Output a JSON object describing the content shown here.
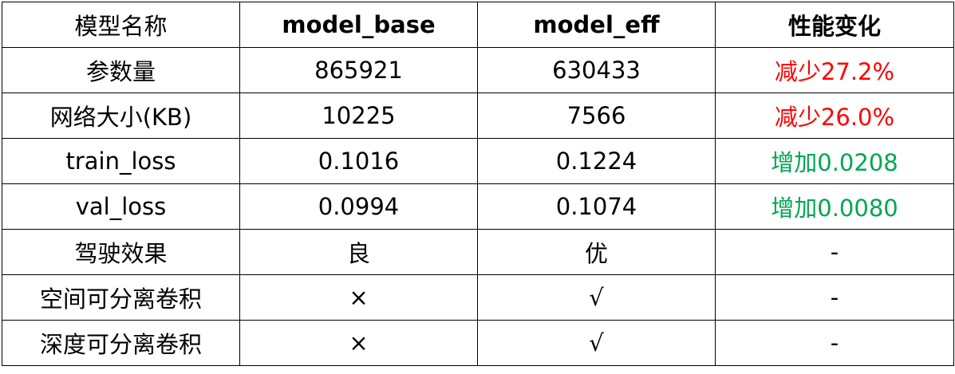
{
  "colors": {
    "decrease": "#ff0000",
    "increase": "#00a651",
    "border": "#000000"
  },
  "header": [
    "模型名称",
    "model_base",
    "model_eff",
    "性能变化"
  ],
  "rows": [
    {
      "name": "参数量",
      "base": "865921",
      "eff": "630433",
      "change": "减少27.2%",
      "change_color": "decrease"
    },
    {
      "name": "网络大小(KB)",
      "base": "10225",
      "eff": "7566",
      "change": "减少26.0%",
      "change_color": "decrease"
    },
    {
      "name": "train_loss",
      "base": "0.1016",
      "eff": "0.1224",
      "change": "增加0.0208",
      "change_color": "increase"
    },
    {
      "name": "val_loss",
      "base": "0.0994",
      "eff": "0.1074",
      "change": "增加0.0080",
      "change_color": "increase"
    },
    {
      "name": "驾驶效果",
      "base": "良",
      "eff": "优",
      "change": "-",
      "change_color": "none"
    },
    {
      "name": "空间可分离卷积",
      "base": "×",
      "eff": "√",
      "change": "-",
      "change_color": "none"
    },
    {
      "name": "深度可分离卷积",
      "base": "×",
      "eff": "√",
      "change": "-",
      "change_color": "none"
    }
  ]
}
